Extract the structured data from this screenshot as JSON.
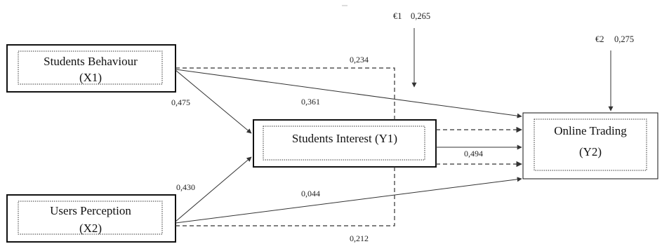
{
  "nodes": {
    "x1": {
      "line1": "Students Behaviour",
      "line2": "(X1)"
    },
    "x2": {
      "line1": "Users Perception",
      "line2": "(X2)"
    },
    "y1": {
      "line1": "Students Interest (Y1)"
    },
    "y2": {
      "line1": "Online Trading",
      "line2": "(Y2)"
    }
  },
  "errors": {
    "e1": {
      "symbol": "€1",
      "value": "0,265"
    },
    "e2": {
      "symbol": "€2",
      "value": "0,275"
    }
  },
  "paths": {
    "x1_y1": "0,475",
    "x2_y1": "0,430",
    "x1_y2": "0,361",
    "x2_y2": "0,044",
    "y1_y2": "0,494",
    "x1_indirect": "0,234",
    "x2_indirect": "0,212"
  },
  "colors": {
    "line": "#333333",
    "box": "#111111"
  }
}
